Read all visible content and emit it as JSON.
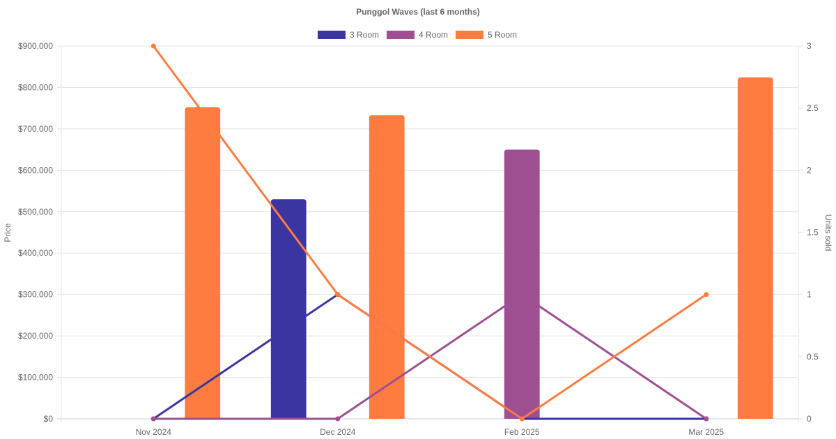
{
  "chart_data": {
    "type": "bar",
    "title": "Punggol Waves (last 6 months)",
    "categories": [
      "Nov 2024",
      "Dec 2024",
      "Feb 2025",
      "Mar 2025"
    ],
    "ylabel": "Price",
    "y2label": "Units sold",
    "ylim": [
      0,
      900000
    ],
    "y2lim": [
      0,
      3
    ],
    "yticks": [
      "$0",
      "$100,000",
      "$200,000",
      "$300,000",
      "$400,000",
      "$500,000",
      "$600,000",
      "$700,000",
      "$800,000",
      "$900,000"
    ],
    "y2ticks": [
      "0",
      "0.5",
      "1",
      "1.5",
      "2",
      "2.5",
      "3"
    ],
    "legend_position": "top",
    "grid": true,
    "series": [
      {
        "name": "3 Room",
        "color": "#3a35a0",
        "price": [
          null,
          530000,
          null,
          null
        ],
        "units_sold": [
          0,
          1,
          0,
          0
        ]
      },
      {
        "name": "4 Room",
        "color": "#9e4f92",
        "price": [
          null,
          null,
          650000,
          null
        ],
        "units_sold": [
          0,
          0,
          1,
          0
        ]
      },
      {
        "name": "5 Room",
        "color": "#ff7c41",
        "price": [
          752000,
          733000,
          null,
          824000
        ],
        "units_sold": [
          3,
          1,
          0,
          1
        ]
      }
    ]
  }
}
